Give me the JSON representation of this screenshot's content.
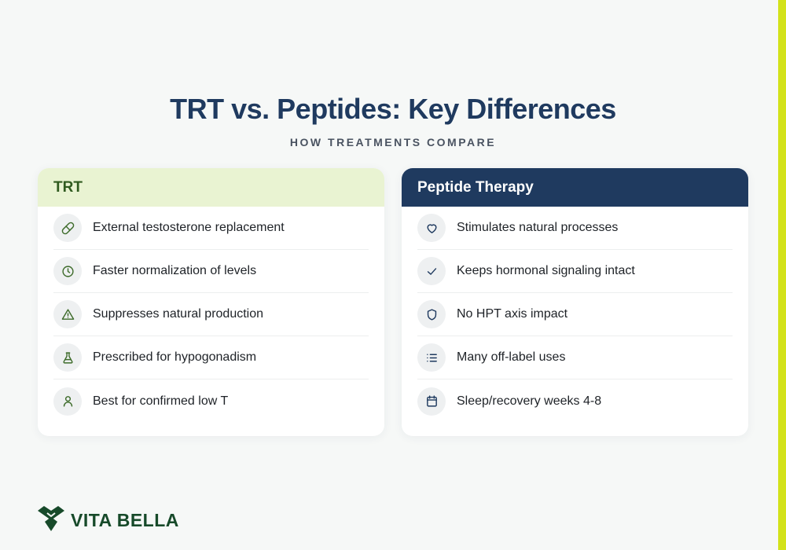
{
  "header": {
    "title": "TRT vs. Peptides: Key Differences",
    "subtitle": "HOW TREATMENTS COMPARE"
  },
  "colors": {
    "navy": "#1f3a5f",
    "light_green": "#e9f3d2",
    "dark_green": "#2f5a1f",
    "accent_bar": "#d3e21a",
    "brand_green": "#174a2a"
  },
  "cards": [
    {
      "title": "TRT",
      "items": [
        {
          "label": "External testosterone replacement",
          "icon": "pill-icon"
        },
        {
          "label": "Faster normalization of levels",
          "icon": "clock-icon"
        },
        {
          "label": "Suppresses natural production",
          "icon": "warning-icon"
        },
        {
          "label": "Prescribed for hypogonadism",
          "icon": "flask-icon"
        },
        {
          "label": "Best for confirmed low T",
          "icon": "user-icon"
        }
      ]
    },
    {
      "title": "Peptide Therapy",
      "items": [
        {
          "label": "Stimulates natural processes",
          "icon": "heart-icon"
        },
        {
          "label": "Keeps hormonal signaling intact",
          "icon": "check-icon"
        },
        {
          "label": "No HPT axis impact",
          "icon": "shield-icon"
        },
        {
          "label": "Many off-label uses",
          "icon": "list-icon"
        },
        {
          "label": "Sleep/recovery weeks 4-8",
          "icon": "calendar-icon"
        }
      ]
    }
  ],
  "brand": {
    "name": "VITA BELLA",
    "icon": "vita-bella-logo-icon"
  }
}
